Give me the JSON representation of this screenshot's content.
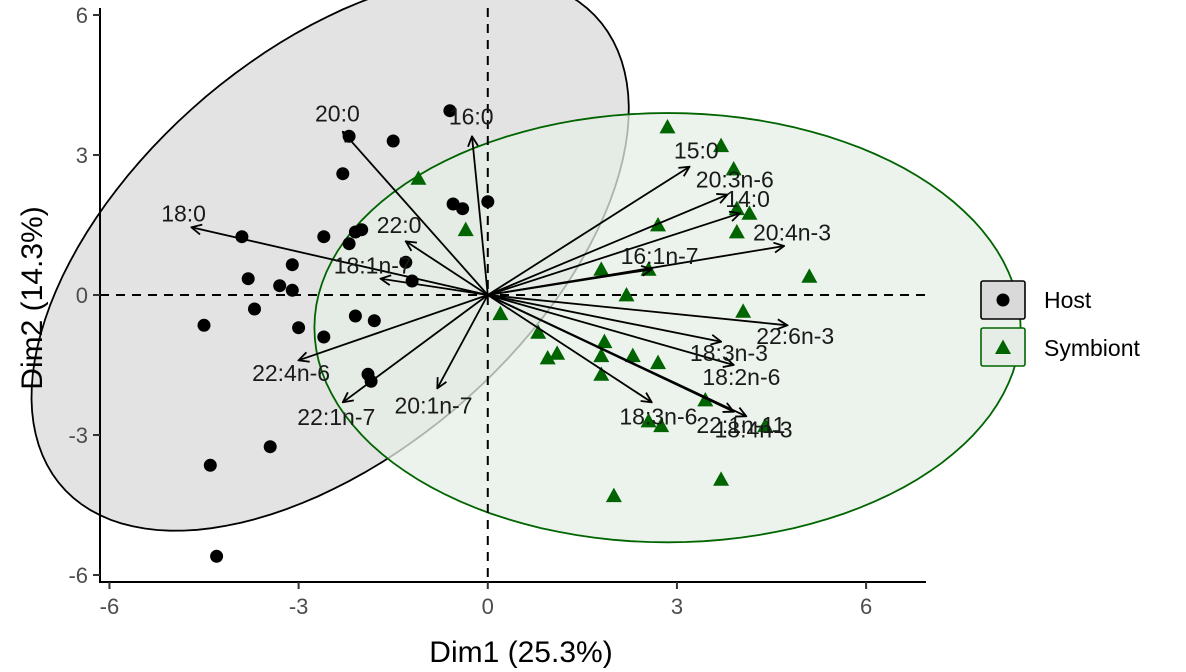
{
  "chart_data": {
    "type": "scatter",
    "subtype": "pca-biplot",
    "xlabel": "Dim1 (25.3%)",
    "ylabel": "Dim2 (14.3%)",
    "xlim": [
      -6.15,
      6.95
    ],
    "ylim": [
      -6.15,
      6.15
    ],
    "x_ticks": [
      -6,
      -3,
      0,
      3,
      6
    ],
    "x_tick_labels": [
      "-6",
      "-3",
      "0",
      "3",
      "6"
    ],
    "y_ticks": [
      -6,
      -3,
      0,
      3,
      6
    ],
    "y_tick_labels": [
      "-6",
      "-3",
      "0",
      "3",
      "6"
    ],
    "grid": false,
    "reference_lines": {
      "x": 0,
      "y": 0,
      "style": "dashed"
    },
    "legend_placement": "right",
    "series": [
      {
        "name": "Host",
        "marker": "circle",
        "color": "#000000",
        "ellipse_fill": "#d9d9d9",
        "ellipse_stroke": "#000000",
        "ellipse": {
          "cx": -2.5,
          "cy": 0.9,
          "rx": 6.7,
          "ry": 3.6,
          "angle_deg": 57
        },
        "points": [
          [
            -0.6,
            3.95
          ],
          [
            -2.2,
            3.4
          ],
          [
            -1.5,
            3.3
          ],
          [
            -2.3,
            2.6
          ],
          [
            -0.55,
            1.95
          ],
          [
            -0.4,
            1.85
          ],
          [
            0.0,
            2.0
          ],
          [
            -3.9,
            1.25
          ],
          [
            -2.6,
            1.25
          ],
          [
            -2.1,
            1.35
          ],
          [
            -2.0,
            1.4
          ],
          [
            -2.2,
            1.1
          ],
          [
            -1.3,
            0.7
          ],
          [
            -3.1,
            0.65
          ],
          [
            -1.2,
            0.3
          ],
          [
            -3.8,
            0.35
          ],
          [
            -3.3,
            0.2
          ],
          [
            -3.1,
            0.1
          ],
          [
            -3.7,
            -0.3
          ],
          [
            -2.1,
            -0.45
          ],
          [
            -1.8,
            -0.55
          ],
          [
            -4.5,
            -0.65
          ],
          [
            -3.0,
            -0.7
          ],
          [
            -2.6,
            -0.9
          ],
          [
            -1.9,
            -1.7
          ],
          [
            -1.85,
            -1.85
          ],
          [
            -3.45,
            -3.25
          ],
          [
            -4.4,
            -3.65
          ],
          [
            -4.3,
            -5.6
          ]
        ]
      },
      {
        "name": "Symbiont",
        "marker": "triangle",
        "color": "#006400",
        "ellipse_fill": "#e6ede6",
        "ellipse_stroke": "#006400",
        "ellipse": {
          "cx": 2.85,
          "cy": -0.7,
          "rx": 5.6,
          "ry": 4.6,
          "angle_deg": 0
        },
        "points": [
          [
            2.85,
            3.6
          ],
          [
            3.7,
            3.2
          ],
          [
            3.9,
            2.7
          ],
          [
            -1.1,
            2.5
          ],
          [
            3.95,
            1.85
          ],
          [
            4.15,
            1.75
          ],
          [
            2.7,
            1.5
          ],
          [
            -0.35,
            1.4
          ],
          [
            3.95,
            1.35
          ],
          [
            1.8,
            0.55
          ],
          [
            2.55,
            0.55
          ],
          [
            5.1,
            0.4
          ],
          [
            2.2,
            0.0
          ],
          [
            4.05,
            -0.35
          ],
          [
            0.2,
            -0.4
          ],
          [
            0.8,
            -0.8
          ],
          [
            1.85,
            -1.0
          ],
          [
            1.1,
            -1.25
          ],
          [
            0.95,
            -1.35
          ],
          [
            1.8,
            -1.3
          ],
          [
            2.3,
            -1.3
          ],
          [
            2.7,
            -1.45
          ],
          [
            1.8,
            -1.7
          ],
          [
            3.45,
            -2.25
          ],
          [
            2.55,
            -2.7
          ],
          [
            2.75,
            -2.8
          ],
          [
            4.4,
            -2.8
          ],
          [
            3.7,
            -3.95
          ],
          [
            2.0,
            -4.3
          ]
        ]
      }
    ],
    "variables": [
      {
        "name": "20:0",
        "x": -2.3,
        "y": 3.5
      },
      {
        "name": "16:0",
        "x": -0.25,
        "y": 3.4
      },
      {
        "name": "15:0",
        "x": 3.2,
        "y": 2.75
      },
      {
        "name": "20:3n-6",
        "x": 3.8,
        "y": 2.15
      },
      {
        "name": "14:0",
        "x": 4.0,
        "y": 1.75
      },
      {
        "name": "18:0",
        "x": -4.7,
        "y": 1.45
      },
      {
        "name": "22:0",
        "x": -1.3,
        "y": 1.15
      },
      {
        "name": "20:4n-3",
        "x": 4.7,
        "y": 1.05
      },
      {
        "name": "16:1n-7",
        "x": 2.6,
        "y": 0.55
      },
      {
        "name": "18:1n-7",
        "x": -1.7,
        "y": 0.35
      },
      {
        "name": "22:6n-3",
        "x": 4.75,
        "y": -0.65
      },
      {
        "name": "18:3n-3",
        "x": 3.7,
        "y": -1.0
      },
      {
        "name": "22:4n-6",
        "x": -3.0,
        "y": -1.4
      },
      {
        "name": "18:2n-6",
        "x": 3.9,
        "y": -1.5
      },
      {
        "name": "20:1n-7",
        "x": -0.8,
        "y": -2.0
      },
      {
        "name": "22:1n-11",
        "x": 3.9,
        "y": -2.5
      },
      {
        "name": "18:3n-6",
        "x": 2.6,
        "y": -2.3
      },
      {
        "name": "18:4n-3",
        "x": 4.1,
        "y": -2.6
      },
      {
        "name": "22:1n-7",
        "x": -2.3,
        "y": -2.3
      }
    ]
  }
}
